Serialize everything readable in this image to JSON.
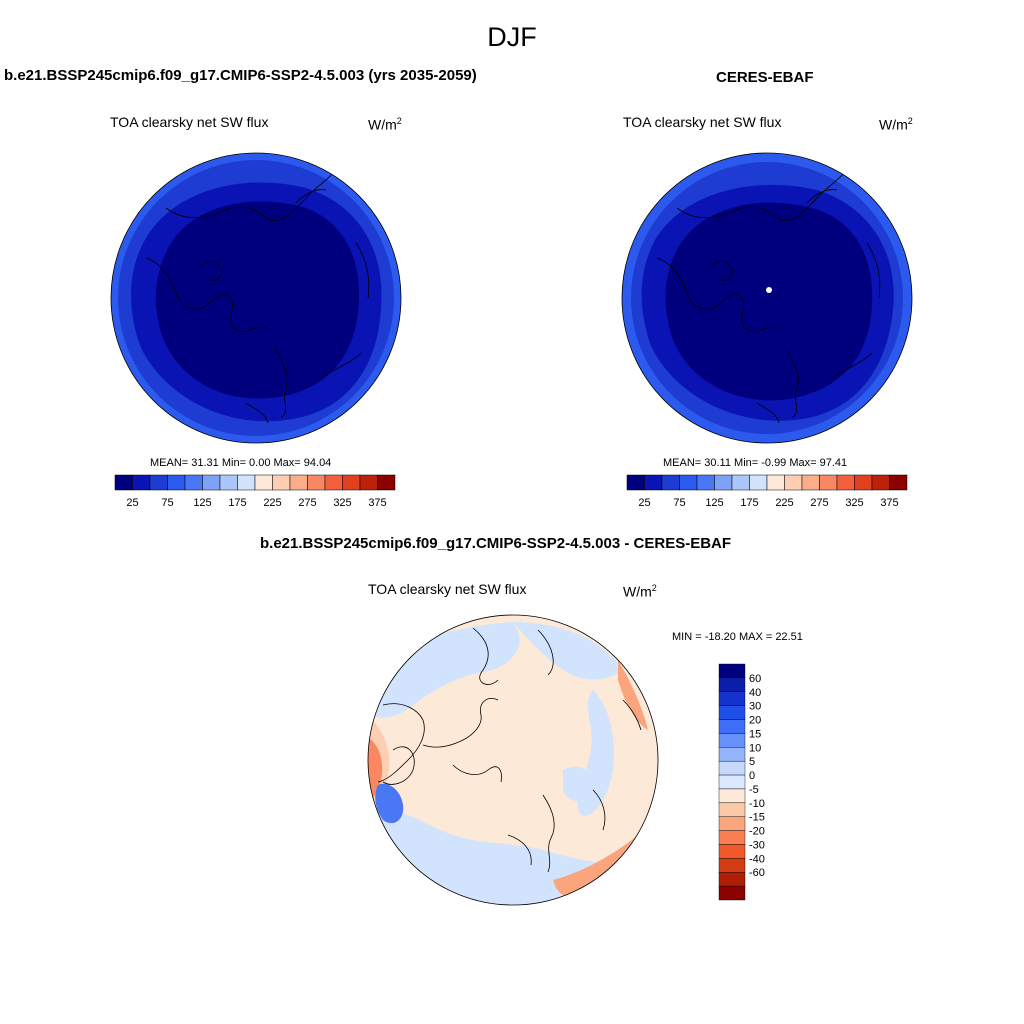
{
  "page": {
    "title": "DJF"
  },
  "panels": {
    "model": {
      "title": "b.e21.BSSP245cmip6.f09_g17.CMIP6-SSP2-4.5.003 (yrs 2035-2059)",
      "variable": "TOA clearsky net SW flux",
      "units_base": "W/m",
      "units_exp": "2",
      "stats": "MEAN=  31.31  Min=   0.00  Max=  94.04"
    },
    "obs": {
      "title": "CERES-EBAF",
      "variable": "TOA clearsky net SW flux",
      "units_base": "W/m",
      "units_exp": "2",
      "stats": "MEAN=  30.11  Min=  -0.99  Max=  97.41"
    },
    "diff": {
      "title": "b.e21.BSSP245cmip6.f09_g17.CMIP6-SSP2-4.5.003 - CERES-EBAF",
      "variable": "TOA clearsky net SW flux",
      "units_base": "W/m",
      "units_exp": "2",
      "stats": "MIN = -18.20 MAX =  22.51"
    }
  },
  "colorbars": {
    "abs": {
      "orientation": "horizontal",
      "colors": [
        "#00007f",
        "#0a14b4",
        "#1e3cd2",
        "#2d5aee",
        "#4a78f4",
        "#7da2f8",
        "#aac6fb",
        "#d2e4fd",
        "#fde9d7",
        "#fccfb3",
        "#fbac89",
        "#f98761",
        "#f4603e",
        "#e2401f",
        "#bc220a",
        "#8c0000"
      ],
      "tick_labels": [
        "25",
        "75",
        "125",
        "175",
        "225",
        "275",
        "325",
        "375"
      ]
    },
    "diff": {
      "orientation": "vertical",
      "colors": [
        "#00007f",
        "#0a1eaa",
        "#1432cc",
        "#1e50e8",
        "#3c6ef8",
        "#6690fa",
        "#95b4fc",
        "#c6d9fd",
        "#dbe8fd",
        "#fde9d7",
        "#fcc9a8",
        "#fba57e",
        "#f97f52",
        "#f05a2c",
        "#d23c12",
        "#b01e05",
        "#8c0000"
      ],
      "tick_labels": [
        "60",
        "40",
        "30",
        "20",
        "15",
        "10",
        "5",
        "0",
        "-5",
        "-10",
        "-15",
        "-20",
        "-30",
        "-40",
        "-60"
      ]
    }
  },
  "map_colors": {
    "abs_inner": "#00007f",
    "abs_mid": "#0a14b4",
    "abs_outer": "#1e3cd2",
    "abs_edge": "#2d5aee",
    "diff_base": "#fde9d7",
    "diff_neg": "#d2e4fd",
    "diff_pos1": "#fccfb3",
    "diff_pos2": "#f98761",
    "diff_neg2": "#4a78f4",
    "coast": "#000000"
  }
}
